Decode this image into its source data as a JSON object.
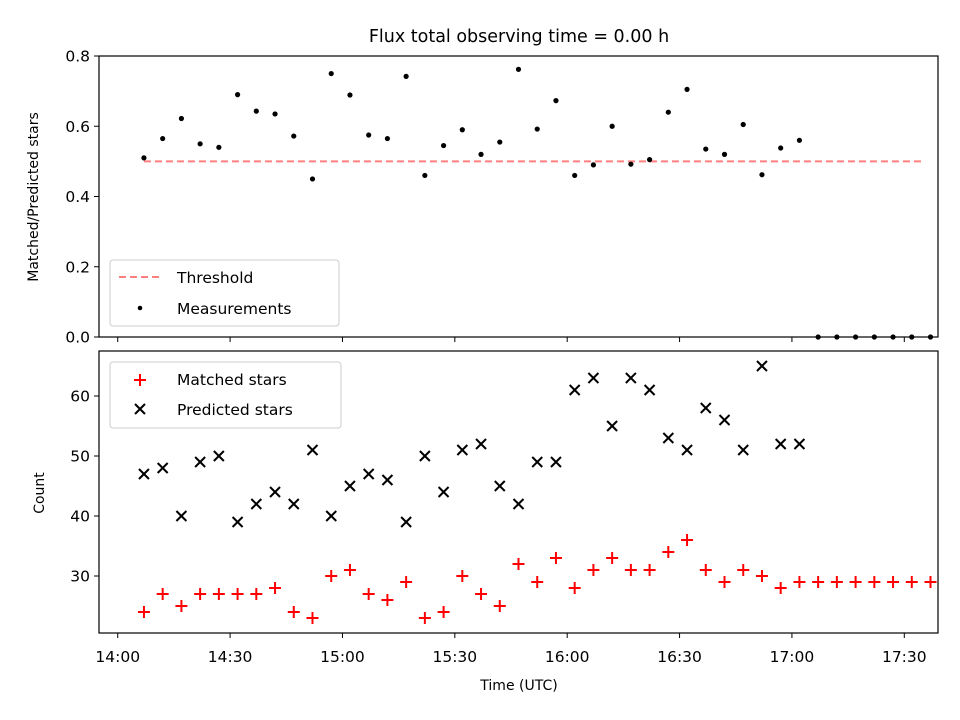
{
  "chart_data": [
    {
      "type": "scatter",
      "title": "Flux total observing time = 0.00 h",
      "xlabel": "",
      "ylabel": "Matched/Predicted stars",
      "ylim": [
        0,
        0.8
      ],
      "yticks": [
        "0.0",
        "0.2",
        "0.4",
        "0.6",
        "0.8"
      ],
      "xlim": [
        "13:55",
        "17:39"
      ],
      "legend_position": "lower-left",
      "threshold": {
        "name": "Threshold",
        "value": 0.5,
        "x_start": "14:07",
        "x_end": "17:35",
        "color": "#ff7f7f",
        "style": "dashed"
      },
      "series": [
        {
          "name": "Measurements",
          "color": "#000000",
          "marker": "dot",
          "x": [
            "14:07",
            "14:12",
            "14:17",
            "14:22",
            "14:27",
            "14:32",
            "14:37",
            "14:42",
            "14:47",
            "14:52",
            "14:57",
            "15:02",
            "15:07",
            "15:12",
            "15:17",
            "15:22",
            "15:27",
            "15:32",
            "15:37",
            "15:42",
            "15:47",
            "15:52",
            "15:57",
            "16:02",
            "16:07",
            "16:12",
            "16:17",
            "16:22",
            "16:27",
            "16:32",
            "16:37",
            "16:42",
            "16:47",
            "16:52",
            "16:57",
            "17:02",
            "17:07",
            "17:12",
            "17:17",
            "17:22",
            "17:27",
            "17:32",
            "17:37"
          ],
          "y": [
            0.51,
            0.565,
            0.622,
            0.55,
            0.54,
            0.69,
            0.643,
            0.635,
            0.572,
            0.45,
            0.75,
            0.689,
            0.575,
            0.565,
            0.742,
            0.46,
            0.545,
            0.59,
            0.52,
            0.555,
            0.762,
            0.592,
            0.673,
            0.46,
            0.49,
            0.6,
            0.492,
            0.505,
            0.64,
            0.705,
            0.535,
            0.52,
            0.605,
            0.462,
            0.538,
            0.56,
            0,
            0,
            0,
            0,
            0,
            0,
            0
          ]
        }
      ]
    },
    {
      "type": "scatter",
      "title": "",
      "xlabel": "Time (UTC)",
      "ylabel": "Count",
      "ylim": [
        20.5,
        67.5
      ],
      "yticks": [
        "30",
        "40",
        "50",
        "60"
      ],
      "xticks": [
        "14:00",
        "14:30",
        "15:00",
        "15:30",
        "16:00",
        "16:30",
        "17:00",
        "17:30"
      ],
      "xlim": [
        "13:55",
        "17:39"
      ],
      "legend_position": "upper-left",
      "series": [
        {
          "name": "Matched stars",
          "color": "#ff0000",
          "marker": "plus",
          "x": [
            "14:07",
            "14:12",
            "14:17",
            "14:22",
            "14:27",
            "14:32",
            "14:37",
            "14:42",
            "14:47",
            "14:52",
            "14:57",
            "15:02",
            "15:07",
            "15:12",
            "15:17",
            "15:22",
            "15:27",
            "15:32",
            "15:37",
            "15:42",
            "15:47",
            "15:52",
            "15:57",
            "16:02",
            "16:07",
            "16:12",
            "16:17",
            "16:22",
            "16:27",
            "16:32",
            "16:37",
            "16:42",
            "16:47",
            "16:52",
            "16:57",
            "17:02",
            "17:07",
            "17:12",
            "17:17",
            "17:22",
            "17:27",
            "17:32",
            "17:37"
          ],
          "y": [
            24,
            27,
            25,
            27,
            27,
            27,
            27,
            28,
            24,
            23,
            30,
            31,
            27,
            26,
            29,
            23,
            24,
            30,
            27,
            25,
            32,
            29,
            33,
            28,
            31,
            33,
            31,
            31,
            34,
            36,
            31,
            29,
            31,
            30,
            28,
            29,
            29,
            29,
            29,
            29,
            29,
            29,
            29
          ]
        },
        {
          "name": "Predicted stars",
          "color": "#000000",
          "marker": "x",
          "x": [
            "14:07",
            "14:12",
            "14:17",
            "14:22",
            "14:27",
            "14:32",
            "14:37",
            "14:42",
            "14:47",
            "14:52",
            "14:57",
            "15:02",
            "15:07",
            "15:12",
            "15:17",
            "15:22",
            "15:27",
            "15:32",
            "15:37",
            "15:42",
            "15:47",
            "15:52",
            "15:57",
            "16:02",
            "16:07",
            "16:12",
            "16:17",
            "16:22",
            "16:27",
            "16:32",
            "16:37",
            "16:42",
            "16:47",
            "16:52",
            "16:57",
            "17:02"
          ],
          "y": [
            47,
            48,
            40,
            49,
            50,
            39,
            42,
            44,
            42,
            51,
            40,
            45,
            47,
            46,
            39,
            50,
            44,
            51,
            52,
            45,
            42,
            49,
            49,
            61,
            63,
            55,
            63,
            61,
            53,
            51,
            58,
            56,
            51,
            65,
            52,
            52
          ]
        }
      ]
    }
  ]
}
